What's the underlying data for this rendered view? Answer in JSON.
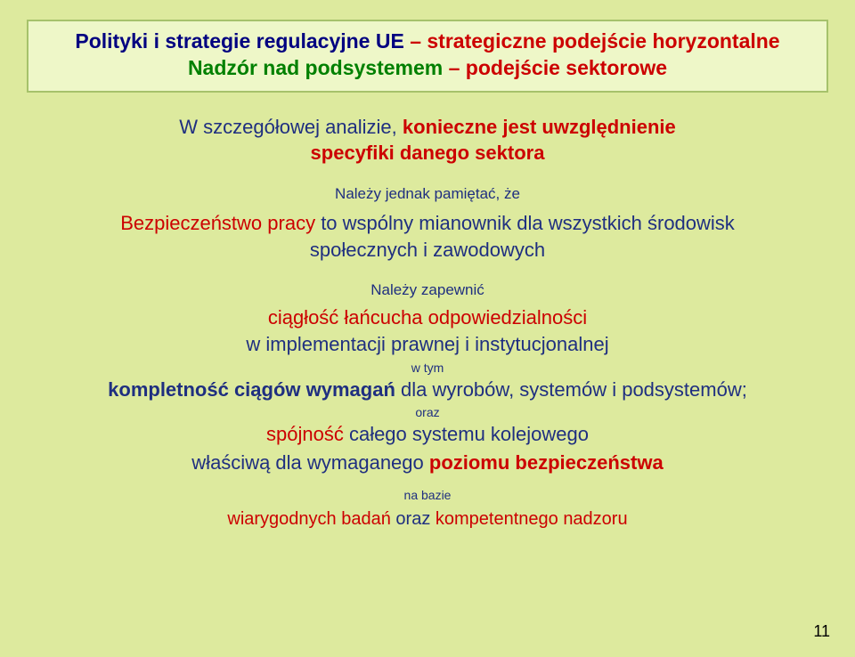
{
  "header": {
    "line1_a": "Polityki i strategie regulacyjne UE ",
    "line1_b": "– strategiczne podejście horyzontalne",
    "line2_a": "Nadzór nad podsystemem ",
    "line2_b": "– podejście sektorowe"
  },
  "intro": {
    "a": "W szczegółowej analizie, ",
    "b": "konieczne jest uwzględnienie",
    "c": "specyfiki danego sektora"
  },
  "note1": "Należy jednak pamiętać, że",
  "safety": {
    "a": "Bezpieczeństwo pracy ",
    "b": "to wspólny mianownik dla wszystkich środowisk",
    "c": "społecznych i zawodowych"
  },
  "ensure": "Należy zapewnić",
  "chain": "ciągłość łańcucha odpowiedzialności",
  "impl": "w implementacji prawnej i instytucjonalnej",
  "tiny1": "w tym",
  "complete": {
    "a": "kompletność ciągów wymagań ",
    "b": "dla wyrobów, systemów i podsystemów;"
  },
  "oraz": "oraz",
  "cohesion": {
    "a": "spójność ",
    "b": "całego systemu kolejowego"
  },
  "level": {
    "a": "właściwą dla wymaganego ",
    "b": "poziomu  bezpieczeństwa"
  },
  "basis": "na bazie",
  "research": {
    "a": "wiarygodnych badań ",
    "b": "oraz ",
    "c": "kompetentnego nadzoru"
  },
  "page": "11"
}
